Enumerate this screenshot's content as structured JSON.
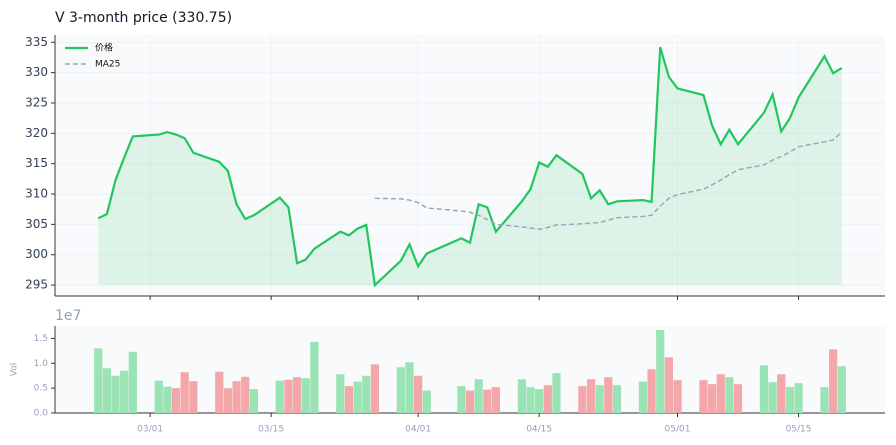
{
  "chart_data": [
    {
      "type": "line",
      "title": "V  3-month price (330.75)",
      "x": [
        "02/23",
        "02/24",
        "02/25",
        "02/26",
        "02/27",
        "03/02",
        "03/03",
        "03/04",
        "03/05",
        "03/06",
        "03/09",
        "03/10",
        "03/11",
        "03/12",
        "03/13",
        "03/16",
        "03/17",
        "03/18",
        "03/19",
        "03/20",
        "03/23",
        "03/24",
        "03/25",
        "03/26",
        "03/27",
        "03/30",
        "03/31",
        "04/01",
        "04/02",
        "04/06",
        "04/07",
        "04/08",
        "04/09",
        "04/10",
        "04/13",
        "04/14",
        "04/15",
        "04/16",
        "04/17",
        "04/20",
        "04/21",
        "04/22",
        "04/23",
        "04/24",
        "04/27",
        "04/28",
        "04/29",
        "04/30",
        "05/01",
        "05/04",
        "05/05",
        "05/06",
        "05/07",
        "05/08",
        "05/11",
        "05/12",
        "05/13",
        "05/14",
        "05/15",
        "05/18",
        "05/19",
        "05/20"
      ],
      "series": [
        {
          "name": "价格",
          "color": "#22c55e",
          "fill": true,
          "values": [
            306.0,
            306.7,
            312.3,
            316.0,
            319.5,
            319.8,
            320.2,
            319.8,
            319.2,
            316.8,
            315.3,
            313.8,
            308.3,
            305.9,
            306.5,
            309.4,
            307.8,
            298.6,
            299.2,
            301.0,
            303.8,
            303.2,
            304.3,
            304.9,
            295.0,
            299.0,
            301.7,
            298.1,
            300.2,
            302.7,
            302.0,
            308.3,
            307.8,
            303.8,
            308.8,
            310.8,
            315.2,
            314.5,
            316.4,
            313.3,
            309.3,
            310.6,
            308.3,
            308.8,
            309.0,
            308.7,
            334.2,
            329.3,
            327.4,
            326.3,
            321.3,
            318.2,
            320.6,
            318.2,
            323.4,
            326.4,
            320.3,
            322.5,
            325.9,
            332.7,
            329.9,
            330.75
          ]
        },
        {
          "name": "MA25",
          "color": "#94a3b8",
          "dashed": true,
          "values": [
            null,
            null,
            null,
            null,
            null,
            null,
            null,
            null,
            null,
            null,
            null,
            null,
            null,
            null,
            null,
            null,
            null,
            null,
            null,
            null,
            null,
            null,
            null,
            null,
            309.3,
            309.2,
            309.0,
            308.6,
            307.7,
            307.2,
            307.0,
            306.5,
            305.8,
            305.0,
            304.6,
            304.4,
            304.2,
            304.5,
            304.9,
            305.1,
            305.2,
            305.3,
            305.7,
            306.1,
            306.3,
            306.5,
            308.0,
            309.3,
            309.9,
            310.8,
            311.5,
            312.3,
            313.2,
            314.0,
            314.8,
            315.6,
            316.2,
            316.9,
            317.8,
            318.6,
            318.9,
            320.2
          ]
        }
      ],
      "xlim": [
        "02/18",
        "05/25"
      ],
      "xticks": [
        "03/01",
        "03/15",
        "04/01",
        "04/15",
        "05/01",
        "05/15"
      ],
      "ylim": [
        293.2,
        336.2
      ],
      "yticks": [
        295,
        300,
        305,
        310,
        315,
        320,
        325,
        330,
        335
      ],
      "grid": true,
      "legend": "upper left"
    },
    {
      "type": "bar",
      "ylabel": "Vol",
      "offset_label": "1e7",
      "x": [
        "02/23",
        "02/24",
        "02/25",
        "02/26",
        "02/27",
        "03/02",
        "03/03",
        "03/04",
        "03/05",
        "03/06",
        "03/09",
        "03/10",
        "03/11",
        "03/12",
        "03/13",
        "03/16",
        "03/17",
        "03/18",
        "03/19",
        "03/20",
        "03/23",
        "03/24",
        "03/25",
        "03/26",
        "03/27",
        "03/30",
        "03/31",
        "04/01",
        "04/02",
        "04/06",
        "04/07",
        "04/08",
        "04/09",
        "04/10",
        "04/13",
        "04/14",
        "04/15",
        "04/16",
        "04/17",
        "04/20",
        "04/21",
        "04/22",
        "04/23",
        "04/24",
        "04/27",
        "04/28",
        "04/29",
        "04/30",
        "05/01",
        "05/04",
        "05/05",
        "05/06",
        "05/07",
        "05/08",
        "05/11",
        "05/12",
        "05/13",
        "05/14",
        "05/15",
        "05/18",
        "05/19",
        "05/20"
      ],
      "values": [
        1.3,
        0.9,
        0.75,
        0.85,
        1.23,
        0.65,
        0.53,
        0.5,
        0.82,
        0.64,
        0.83,
        0.5,
        0.64,
        0.73,
        0.48,
        0.65,
        0.67,
        0.72,
        0.7,
        1.43,
        0.78,
        0.54,
        0.63,
        0.75,
        0.98,
        0.92,
        1.02,
        0.75,
        0.45,
        0.54,
        0.45,
        0.68,
        0.47,
        0.52,
        0.68,
        0.52,
        0.48,
        0.56,
        0.8,
        0.54,
        0.68,
        0.56,
        0.72,
        0.56,
        0.63,
        0.88,
        1.67,
        1.12,
        0.66,
        0.66,
        0.58,
        0.78,
        0.72,
        0.58,
        0.96,
        0.62,
        0.78,
        0.52,
        0.6,
        0.52,
        1.28,
        0.94
      ],
      "colors": [
        "#9ae3b4",
        "#9ae3b4",
        "#9ae3b4",
        "#9ae3b4",
        "#9ae3b4",
        "#9ae3b4",
        "#9ae3b4",
        "#f4a7aa",
        "#f4a7aa",
        "#f4a7aa",
        "#f4a7aa",
        "#f4a7aa",
        "#f4a7aa",
        "#f4a7aa",
        "#9ae3b4",
        "#9ae3b4",
        "#f4a7aa",
        "#f4a7aa",
        "#9ae3b4",
        "#9ae3b4",
        "#9ae3b4",
        "#f4a7aa",
        "#9ae3b4",
        "#9ae3b4",
        "#f4a7aa",
        "#9ae3b4",
        "#9ae3b4",
        "#f4a7aa",
        "#9ae3b4",
        "#9ae3b4",
        "#f4a7aa",
        "#9ae3b4",
        "#f4a7aa",
        "#f4a7aa",
        "#9ae3b4",
        "#9ae3b4",
        "#9ae3b4",
        "#f4a7aa",
        "#9ae3b4",
        "#f4a7aa",
        "#f4a7aa",
        "#9ae3b4",
        "#f4a7aa",
        "#9ae3b4",
        "#9ae3b4",
        "#f4a7aa",
        "#9ae3b4",
        "#f4a7aa",
        "#f4a7aa",
        "#f4a7aa",
        "#f4a7aa",
        "#f4a7aa",
        "#9ae3b4",
        "#f4a7aa",
        "#9ae3b4",
        "#9ae3b4",
        "#f4a7aa",
        "#9ae3b4",
        "#9ae3b4",
        "#9ae3b4",
        "#f4a7aa",
        "#9ae3b4"
      ],
      "xlim": [
        "02/18",
        "05/25"
      ],
      "xticks": [
        "03/01",
        "03/15",
        "04/01",
        "04/15",
        "05/01",
        "05/15"
      ],
      "ylim": [
        0,
        1.75
      ],
      "yticks": [
        {
          "value": 0,
          "label": "0.0"
        },
        {
          "value": 0.5,
          "label": "0.5"
        },
        {
          "value": 1,
          "label": "1.0"
        },
        {
          "value": 1.5,
          "label": "1.5"
        }
      ]
    }
  ]
}
